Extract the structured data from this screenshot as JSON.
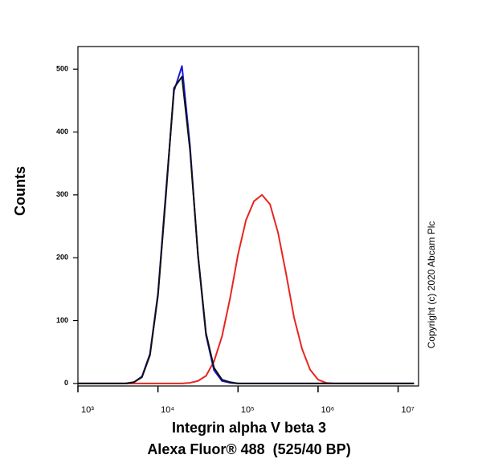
{
  "chart_data": {
    "type": "line",
    "y_label": "Counts",
    "x_label": [
      "Integrin alpha V beta 3",
      "Alexa Fluor® 488  (525/40 BP)"
    ],
    "annotation": "Copyright (c) 2020 Abcam Plc",
    "log_x": true,
    "xlim": [
      1000,
      18000000
    ],
    "xticks": [
      {
        "value": 1000,
        "label": "10³"
      },
      {
        "value": 10000,
        "label": "10⁴"
      },
      {
        "value": 100000,
        "label": "10⁵"
      },
      {
        "value": 1000000,
        "label": "10⁶"
      },
      {
        "value": 10000000,
        "label": "10⁷"
      }
    ],
    "ylim": [
      -4,
      536
    ],
    "yticks": [
      0,
      100,
      200,
      300,
      400,
      500
    ],
    "x": [
      1000,
      1259,
      1585,
      1995,
      2512,
      3162,
      3981,
      5012,
      6310,
      7943,
      10000,
      12590,
      15850,
      19950,
      25120,
      31620,
      39810,
      50120,
      63100,
      79430,
      100000,
      125900,
      158500,
      199500,
      251200,
      316200,
      398100,
      501200,
      631000,
      794300,
      1000000,
      1259000,
      1585000,
      1995000,
      2512000,
      3162000,
      3981000,
      5012000,
      6310000,
      7943000,
      10000000,
      12590000,
      15850000
    ],
    "series": [
      {
        "color": "#e8251f",
        "values": [
          0,
          0,
          0,
          0,
          0,
          0,
          0,
          0,
          0,
          0,
          0,
          0,
          0,
          0,
          1,
          4,
          12,
          35,
          75,
          135,
          205,
          260,
          290,
          300,
          285,
          240,
          175,
          105,
          55,
          22,
          6,
          1,
          0,
          0,
          0,
          0,
          0,
          0,
          0,
          0,
          0,
          0,
          0
        ]
      },
      {
        "color": "#1a1adc",
        "values": [
          0,
          0,
          0,
          0,
          0,
          0,
          0,
          2,
          11,
          47,
          143,
          306,
          465,
          505,
          378,
          203,
          77,
          21,
          4,
          1,
          0,
          0,
          0,
          0,
          0,
          0,
          0,
          0,
          0,
          0,
          0,
          0,
          0,
          0,
          0,
          0,
          0,
          0,
          0,
          0,
          0,
          0,
          0
        ]
      },
      {
        "color": "#111111",
        "values": [
          0,
          0,
          0,
          0,
          0,
          0,
          0,
          2,
          10,
          45,
          140,
          300,
          470,
          488,
          372,
          205,
          80,
          25,
          6,
          2,
          0,
          0,
          0,
          0,
          0,
          0,
          0,
          0,
          0,
          0,
          0,
          0,
          0,
          0,
          0,
          0,
          0,
          0,
          0,
          0,
          0,
          0,
          0
        ]
      }
    ]
  }
}
